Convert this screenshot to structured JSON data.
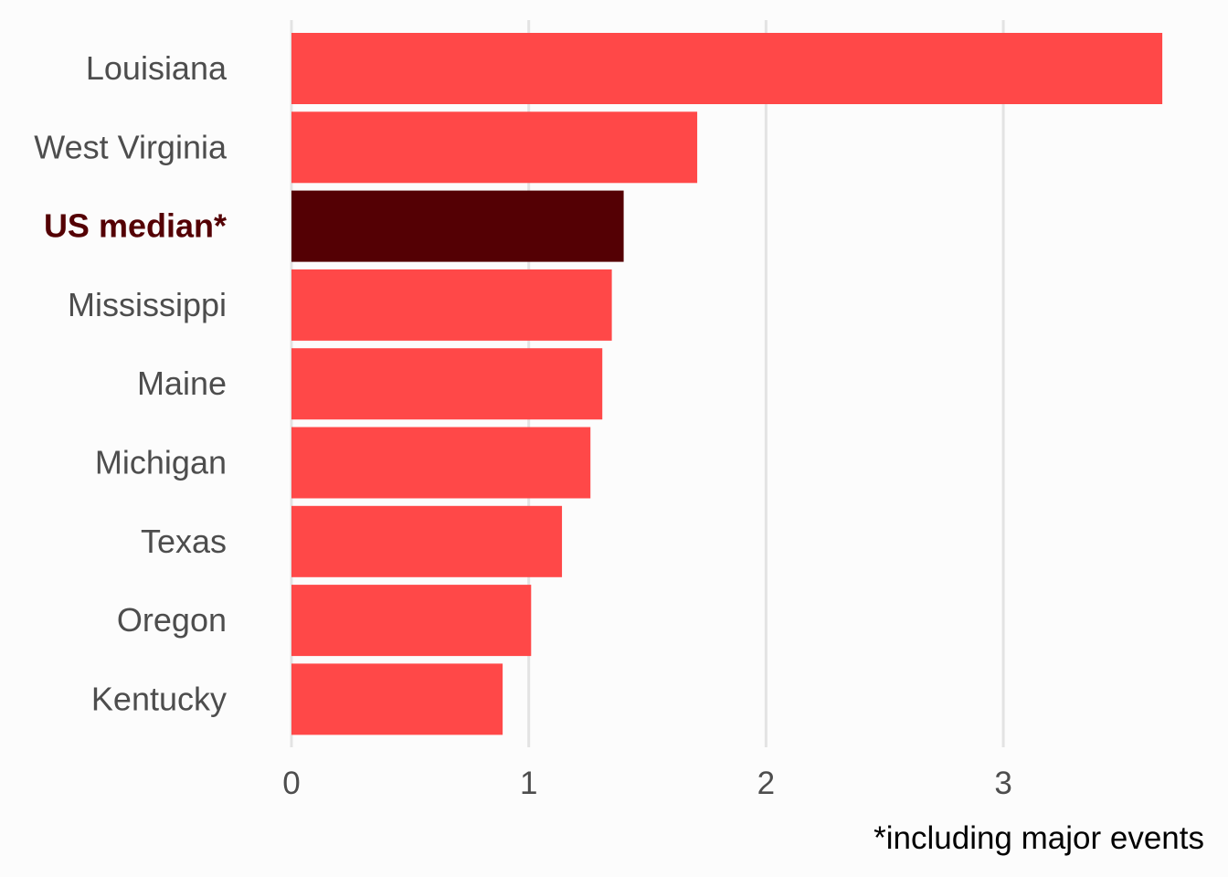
{
  "chart_data": {
    "type": "bar",
    "orientation": "horizontal",
    "categories": [
      "Louisiana",
      "West Virginia",
      "US median*",
      "Mississippi",
      "Maine",
      "Michigan",
      "Texas",
      "Oregon",
      "Kentucky"
    ],
    "values": [
      3.67,
      1.71,
      1.4,
      1.35,
      1.31,
      1.26,
      1.14,
      1.01,
      0.89
    ],
    "highlight_category": "US median*",
    "xlim": [
      0,
      3.83
    ],
    "xticks": [
      "0",
      "1",
      "2",
      "3"
    ],
    "xtick_values": [
      0,
      1,
      2,
      3
    ],
    "title": "",
    "xlabel": "",
    "ylabel": "",
    "caption": "*including major events",
    "grid": "vertical-major",
    "legend": "none",
    "colors": {
      "bar": "#ff4848",
      "highlight_bar": "#540004",
      "highlight_label": "#540004",
      "label": "#4d4d4d",
      "grid": "#e3e3e3",
      "background": "#fcfcfc"
    }
  }
}
